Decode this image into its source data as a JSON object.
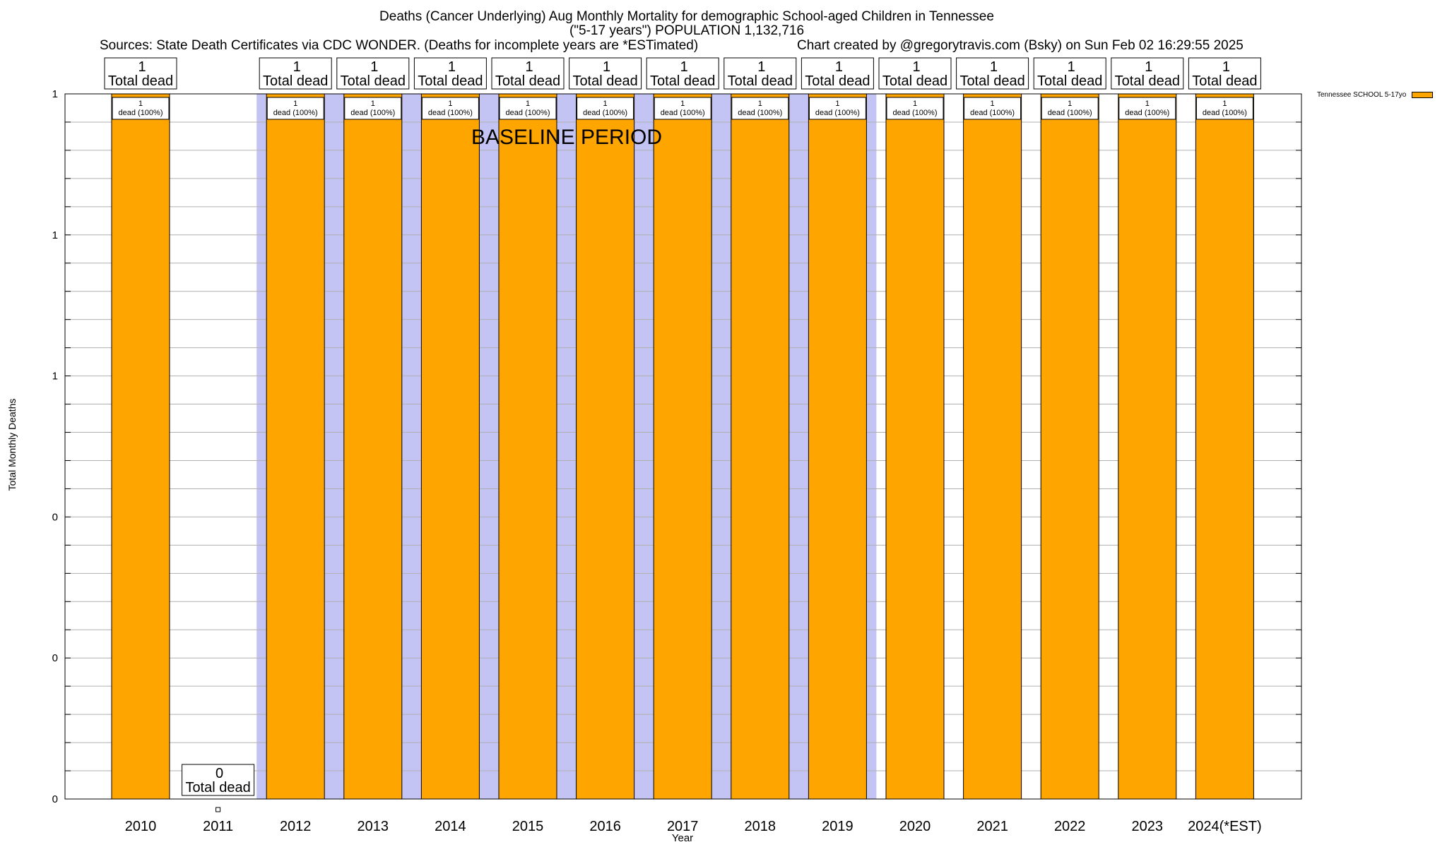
{
  "header": {
    "title_line1": "Deaths (Cancer Underlying) Aug Monthly Mortality for demographic School-aged Children in Tennessee",
    "title_line2": "(\"5-17 years\") POPULATION 1,132,716",
    "sources": "Sources: State Death Certificates via CDC WONDER. (Deaths for incomplete years are *ESTimated)",
    "credit": "Chart created by @gregorytravis.com (Bsky) on Sun Feb 02 16:29:55 2025"
  },
  "chart_data": {
    "type": "bar",
    "xlabel": "Year",
    "ylabel": "Total Monthly Deaths",
    "ylim": [
      0,
      1
    ],
    "y_tick_labels": [
      "0",
      "0",
      "0",
      "1",
      "1",
      "1"
    ],
    "categories": [
      "2010",
      "2011",
      "2012",
      "2013",
      "2014",
      "2015",
      "2016",
      "2017",
      "2018",
      "2019",
      "2020",
      "2021",
      "2022",
      "2023",
      "2024(*EST)"
    ],
    "series": [
      {
        "name": "Tennessee SCHOOL 5-17yo",
        "color": "#ffa500",
        "values": [
          1,
          0,
          1,
          1,
          1,
          1,
          1,
          1,
          1,
          1,
          1,
          1,
          1,
          1,
          1
        ]
      }
    ],
    "total_labels": [
      "1",
      "0",
      "1",
      "1",
      "1",
      "1",
      "1",
      "1",
      "1",
      "1",
      "1",
      "1",
      "1",
      "1",
      "1"
    ],
    "total_label_suffix": "Total dead",
    "inner_labels": [
      "1\ndead (100%)",
      "",
      "1\ndead (100%)",
      "1\ndead (100%)",
      "1\ndead (100%)",
      "1\ndead (100%)",
      "1\ndead (100%)",
      "1\ndead (100%)",
      "1\ndead (100%)",
      "1\ndead (100%)",
      "1\ndead (100%)",
      "1\ndead (100%)",
      "1\ndead (100%)",
      "1\ndead (100%)",
      "1\ndead (100%)"
    ],
    "baseline_period": {
      "label": "BASELINE PERIOD",
      "from": "2012",
      "to": "2019",
      "color": "#c4c4f4"
    },
    "grid": true,
    "legend": "top-right"
  }
}
